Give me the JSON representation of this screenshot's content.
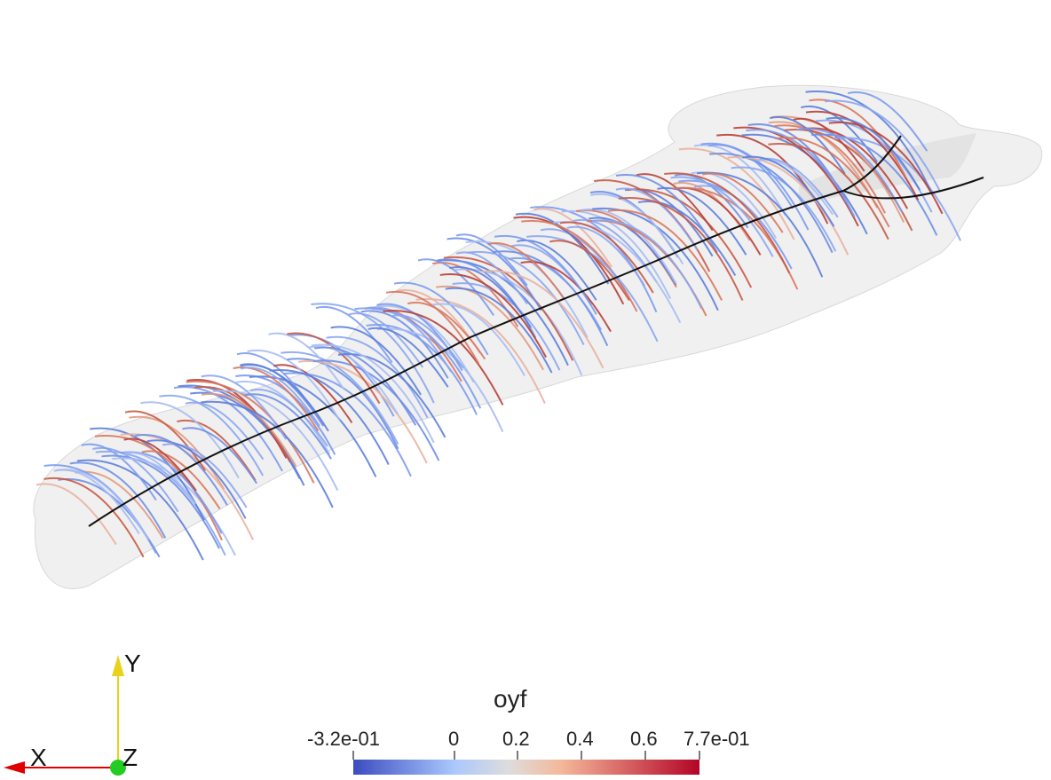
{
  "scalar_bar": {
    "title": "oyf",
    "tick_labels": [
      "-3.2e-01",
      "0",
      "0.2",
      "0.4",
      "0.6",
      "7.7e-01"
    ],
    "range": [
      -0.32,
      0.77
    ],
    "colors": {
      "low": "#3b4cc0",
      "mid": "#dddddd",
      "high": "#b40426"
    }
  },
  "orientation_axes": {
    "x_label": "X",
    "y_label": "Y",
    "z_label": "Z",
    "colors": {
      "x": "#e00000",
      "y": "#e8d21a",
      "z": "#22cc22"
    }
  },
  "surface_color": "#e6e6e6",
  "centerline_color": "#111111"
}
